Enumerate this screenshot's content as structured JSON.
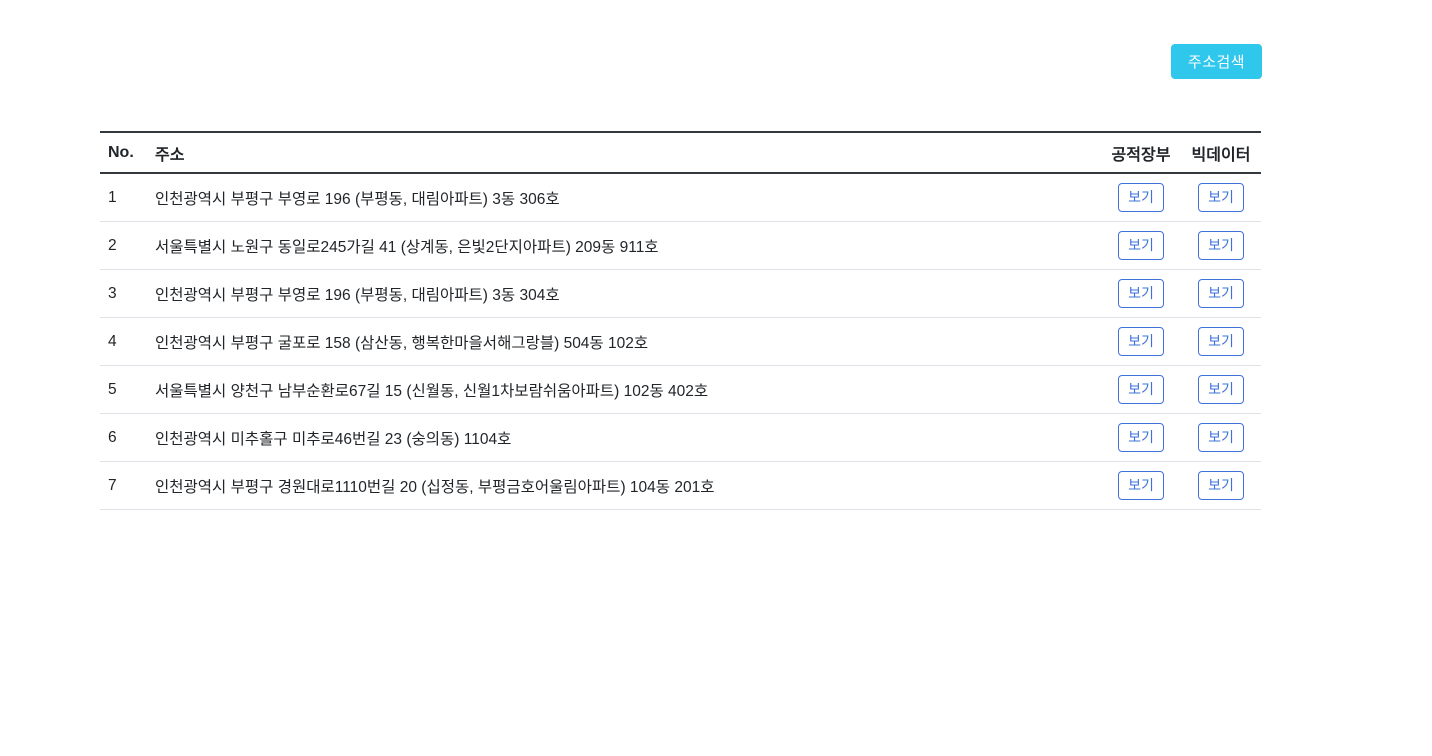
{
  "toolbar": {
    "search_button_label": "주소검색"
  },
  "table": {
    "headers": {
      "no": "No.",
      "address": "주소",
      "public_ledger": "공적장부",
      "big_data": "빅데이터"
    },
    "view_button_label": "보기",
    "rows": [
      {
        "no": "1",
        "address": "인천광역시 부평구 부영로 196 (부평동, 대림아파트) 3동 306호"
      },
      {
        "no": "2",
        "address": "서울특별시 노원구 동일로245가길 41 (상계동, 은빛2단지아파트) 209동 911호"
      },
      {
        "no": "3",
        "address": "인천광역시 부평구 부영로 196 (부평동, 대림아파트) 3동 304호"
      },
      {
        "no": "4",
        "address": "인천광역시 부평구 굴포로 158 (삼산동, 행복한마을서해그랑블) 504동 102호"
      },
      {
        "no": "5",
        "address": "서울특별시 양천구 남부순환로67길 15 (신월동, 신월1차보람쉬움아파트) 102동 402호"
      },
      {
        "no": "6",
        "address": "인천광역시 미추홀구 미추로46번길 23 (숭의동) 1104호"
      },
      {
        "no": "7",
        "address": "인천광역시 부평구 경원대로1110번길 20 (십정동, 부평금호어울림아파트) 104동 201호"
      }
    ]
  },
  "colors": {
    "accent_cyan": "#2fc7ec",
    "button_blue": "#3f72d9",
    "header_border_dark": "#32383e",
    "row_border_light": "#dee2e6",
    "text": "#212529"
  }
}
